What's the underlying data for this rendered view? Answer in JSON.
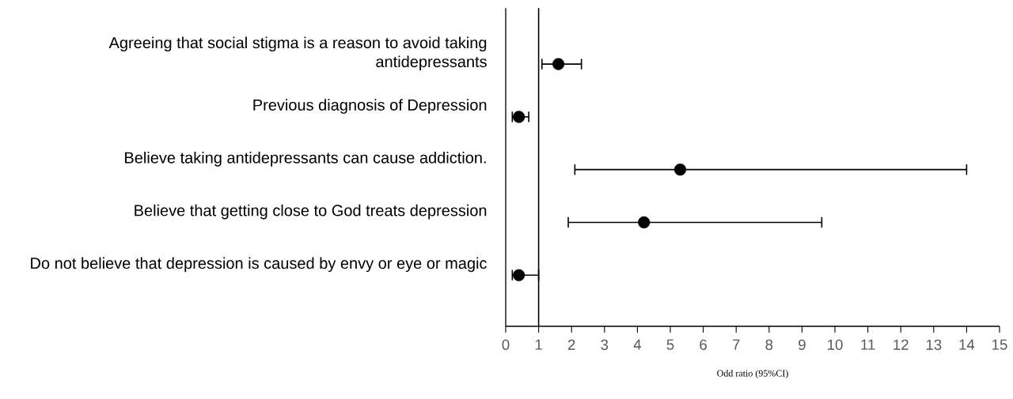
{
  "chart_data": {
    "type": "scatter",
    "orientation": "horizontal",
    "marker": "circle",
    "categories": [
      "Agreeing that social stigma is a reason to avoid taking antidepressants",
      "Previous diagnosis of Depression",
      "Believe taking antidepressants can cause addiction.",
      "Believe that getting close to God treats depression",
      "Do not believe that depression is caused by envy or eye or magic"
    ],
    "series": [
      {
        "color": "#000000",
        "values": [
          1.6,
          0.4,
          5.3,
          4.2,
          0.4
        ],
        "errors": [
          [
            1.1,
            2.3
          ],
          [
            0.2,
            0.7
          ],
          [
            2.1,
            14.0
          ],
          [
            1.9,
            9.6
          ],
          [
            0.2,
            1.0
          ]
        ]
      }
    ],
    "xlim": [
      0,
      15
    ],
    "xticks": [
      0,
      1,
      2,
      3,
      4,
      5,
      6,
      7,
      8,
      9,
      10,
      11,
      12,
      13,
      14,
      15
    ],
    "xlabel": "Odd ratio (95%CI)",
    "ref_lines": [
      {
        "axis": "x",
        "value": 1,
        "color": "#000000"
      }
    ]
  }
}
